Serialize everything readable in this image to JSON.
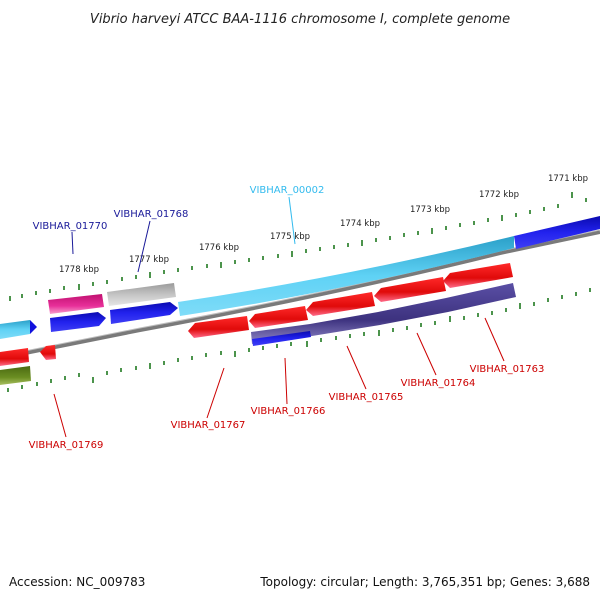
{
  "title": "Vibrio harveyi ATCC BAA-1116 chromosome I, complete genome",
  "footer": {
    "accession": "Accession: NC_009783",
    "summary": "Topology: circular; Length: 3,765,351 bp; Genes: 3,688"
  },
  "scale_labels": [
    "1771 kbp",
    "1772 kbp",
    "1773 kbp",
    "1774 kbp",
    "1775 kbp",
    "1776 kbp",
    "1777 kbp",
    "1778 kbp"
  ],
  "genes": [
    {
      "label": "VIBHAR_00002",
      "color": "#33bbee"
    },
    {
      "label": "VIBHAR_01768",
      "color": "#1a1a99"
    },
    {
      "label": "VIBHAR_01770",
      "color": "#1a1a99"
    },
    {
      "label": "VIBHAR_01763",
      "color": "#cc0000"
    },
    {
      "label": "VIBHAR_01764",
      "color": "#cc0000"
    },
    {
      "label": "VIBHAR_01765",
      "color": "#cc0000"
    },
    {
      "label": "VIBHAR_01766",
      "color": "#cc0000"
    },
    {
      "label": "VIBHAR_01767",
      "color": "#cc0000"
    },
    {
      "label": "VIBHAR_01769",
      "color": "#cc0000"
    }
  ],
  "colors": {
    "backbone": "#888888",
    "tick": "#1f7a1f",
    "forward_cyan": "#3cc3ee",
    "forward_blue": "#1111dd",
    "reverse_red": "#ee1111",
    "reverse_purple": "#4a3f8f",
    "pink": "#e0208a",
    "gray_feature": "#b5b5b5",
    "olive": "#5a7d1a"
  }
}
